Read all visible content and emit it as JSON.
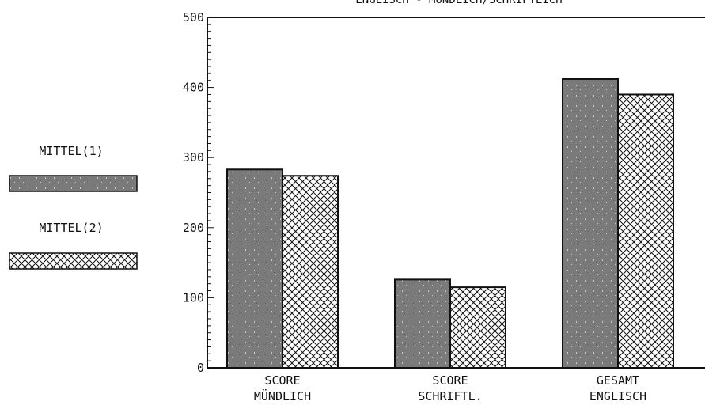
{
  "chart_data": {
    "type": "bar",
    "title": "ENGLISCH - MÜNDLICH/SCHRIFTLICH",
    "categories": [
      [
        "SCORE",
        "MÜNDLICH"
      ],
      [
        "SCORE",
        "SCHRIFTL."
      ],
      [
        "GESAMT",
        "ENGLISCH"
      ]
    ],
    "series": [
      {
        "name": "MITTEL(1)",
        "values": [
          283,
          126,
          412
        ]
      },
      {
        "name": "MITTEL(2)",
        "values": [
          274,
          115,
          390
        ]
      }
    ],
    "ylim": [
      0,
      500
    ],
    "y_ticks": [
      0,
      100,
      200,
      300,
      400,
      500
    ],
    "legend_placement": "left",
    "grid": false,
    "colors": {
      "series1_fill": "#7a7a7a",
      "series2_fill": "#ffffff",
      "stroke": "#111111"
    }
  }
}
